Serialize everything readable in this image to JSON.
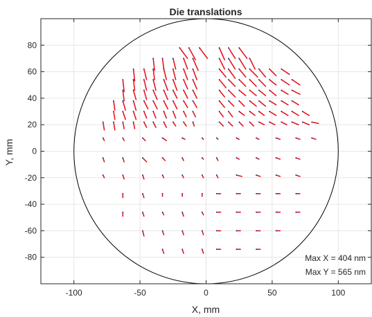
{
  "chart_data": {
    "type": "quiver",
    "title": "Die translations",
    "xlabel": "X, mm",
    "ylabel": "Y, mm",
    "xlim": [
      -125,
      125
    ],
    "ylim": [
      -100,
      100
    ],
    "xticks": [
      -100,
      -50,
      0,
      50,
      100
    ],
    "yticks": [
      -80,
      -60,
      -40,
      -20,
      0,
      20,
      40,
      60,
      80
    ],
    "grid": true,
    "wafer_circle": {
      "center": [
        0,
        0
      ],
      "radius": 100
    },
    "annotations": [
      "Max X = 404 nm",
      "Max Y = 565 nm"
    ],
    "colors": {
      "vector": "#e8141c",
      "tail": "#1b2a8c",
      "circle": "#000000",
      "grid": "#e6e6e6",
      "axis": "#262626"
    },
    "vectors": [
      {
        "x": -20,
        "y": 78,
        "u": 6,
        "v": -8
      },
      {
        "x": -13,
        "y": 78,
        "u": 5,
        "v": -9
      },
      {
        "x": -5,
        "y": 78,
        "u": 6,
        "v": -8
      },
      {
        "x": 10,
        "y": 78,
        "u": 4,
        "v": -9
      },
      {
        "x": 17,
        "y": 78,
        "u": 5,
        "v": -8
      },
      {
        "x": 25,
        "y": 78,
        "u": 6,
        "v": -8
      },
      {
        "x": -40,
        "y": 70,
        "u": 1,
        "v": -9
      },
      {
        "x": -33,
        "y": 70,
        "u": 1,
        "v": -8
      },
      {
        "x": -25,
        "y": 70,
        "u": 2,
        "v": -8
      },
      {
        "x": -17,
        "y": 70,
        "u": 3,
        "v": -8
      },
      {
        "x": -10,
        "y": 70,
        "u": 4,
        "v": -9
      },
      {
        "x": 10,
        "y": 70,
        "u": 4,
        "v": -8
      },
      {
        "x": 17,
        "y": 70,
        "u": 5,
        "v": -8
      },
      {
        "x": 25,
        "y": 70,
        "u": 5,
        "v": -8
      },
      {
        "x": 33,
        "y": 70,
        "u": 4,
        "v": -8
      },
      {
        "x": -55,
        "y": 62,
        "u": 1,
        "v": -9
      },
      {
        "x": -47,
        "y": 62,
        "u": 2,
        "v": -8
      },
      {
        "x": -40,
        "y": 62,
        "u": 1,
        "v": -8
      },
      {
        "x": -32,
        "y": 62,
        "u": 2,
        "v": -8
      },
      {
        "x": -25,
        "y": 62,
        "u": 2,
        "v": -8
      },
      {
        "x": -17,
        "y": 62,
        "u": 3,
        "v": -8
      },
      {
        "x": -10,
        "y": 62,
        "u": 3,
        "v": -8
      },
      {
        "x": 10,
        "y": 62,
        "u": 5,
        "v": -6
      },
      {
        "x": 17,
        "y": 62,
        "u": 5,
        "v": -7
      },
      {
        "x": 25,
        "y": 62,
        "u": 5,
        "v": -6
      },
      {
        "x": 33,
        "y": 62,
        "u": 6,
        "v": -6
      },
      {
        "x": 40,
        "y": 62,
        "u": 5,
        "v": -6
      },
      {
        "x": 48,
        "y": 62,
        "u": 5,
        "v": -5
      },
      {
        "x": 57,
        "y": 62,
        "u": 6,
        "v": -4
      },
      {
        "x": -63,
        "y": 54,
        "u": 1,
        "v": -9
      },
      {
        "x": -55,
        "y": 54,
        "u": 1,
        "v": -8
      },
      {
        "x": -47,
        "y": 54,
        "u": 2,
        "v": -8
      },
      {
        "x": -40,
        "y": 54,
        "u": 2,
        "v": -8
      },
      {
        "x": -32,
        "y": 54,
        "u": 3,
        "v": -8
      },
      {
        "x": -25,
        "y": 54,
        "u": 3,
        "v": -8
      },
      {
        "x": -17,
        "y": 54,
        "u": 3,
        "v": -7
      },
      {
        "x": -10,
        "y": 54,
        "u": 3,
        "v": -7
      },
      {
        "x": 10,
        "y": 54,
        "u": 5,
        "v": -6
      },
      {
        "x": 17,
        "y": 54,
        "u": 5,
        "v": -5
      },
      {
        "x": 25,
        "y": 54,
        "u": 5,
        "v": -5
      },
      {
        "x": 33,
        "y": 54,
        "u": 5,
        "v": -5
      },
      {
        "x": 40,
        "y": 54,
        "u": 5,
        "v": -5
      },
      {
        "x": 48,
        "y": 54,
        "u": 5,
        "v": -4
      },
      {
        "x": 57,
        "y": 54,
        "u": 6,
        "v": -4
      },
      {
        "x": 65,
        "y": 54,
        "u": 6,
        "v": -4
      },
      {
        "x": -63,
        "y": 46,
        "u": 1,
        "v": -8
      },
      {
        "x": -55,
        "y": 46,
        "u": 2,
        "v": -7
      },
      {
        "x": -47,
        "y": 46,
        "u": 2,
        "v": -7
      },
      {
        "x": -40,
        "y": 46,
        "u": 3,
        "v": -7
      },
      {
        "x": -32,
        "y": 46,
        "u": 3,
        "v": -7
      },
      {
        "x": -25,
        "y": 46,
        "u": 3,
        "v": -6
      },
      {
        "x": -17,
        "y": 46,
        "u": 3,
        "v": -6
      },
      {
        "x": -10,
        "y": 46,
        "u": 3,
        "v": -6
      },
      {
        "x": 10,
        "y": 46,
        "u": 4,
        "v": -5
      },
      {
        "x": 17,
        "y": 46,
        "u": 5,
        "v": -5
      },
      {
        "x": 25,
        "y": 46,
        "u": 5,
        "v": -4
      },
      {
        "x": 33,
        "y": 46,
        "u": 5,
        "v": -4
      },
      {
        "x": 40,
        "y": 46,
        "u": 5,
        "v": -4
      },
      {
        "x": 48,
        "y": 46,
        "u": 5,
        "v": -4
      },
      {
        "x": 57,
        "y": 46,
        "u": 5,
        "v": -3
      },
      {
        "x": 65,
        "y": 46,
        "u": 6,
        "v": -3
      },
      {
        "x": -70,
        "y": 38,
        "u": 1,
        "v": -7
      },
      {
        "x": -63,
        "y": 38,
        "u": 2,
        "v": -7
      },
      {
        "x": -55,
        "y": 38,
        "u": 2,
        "v": -7
      },
      {
        "x": -47,
        "y": 38,
        "u": 3,
        "v": -6
      },
      {
        "x": -40,
        "y": 38,
        "u": 3,
        "v": -6
      },
      {
        "x": -32,
        "y": 38,
        "u": 3,
        "v": -6
      },
      {
        "x": -25,
        "y": 38,
        "u": 3,
        "v": -6
      },
      {
        "x": -17,
        "y": 38,
        "u": 3,
        "v": -5
      },
      {
        "x": -10,
        "y": 38,
        "u": 3,
        "v": -5
      },
      {
        "x": 10,
        "y": 38,
        "u": 4,
        "v": -5
      },
      {
        "x": 17,
        "y": 38,
        "u": 4,
        "v": -4
      },
      {
        "x": 25,
        "y": 38,
        "u": 4,
        "v": -4
      },
      {
        "x": 33,
        "y": 38,
        "u": 5,
        "v": -4
      },
      {
        "x": 40,
        "y": 38,
        "u": 5,
        "v": -4
      },
      {
        "x": 48,
        "y": 38,
        "u": 5,
        "v": -3
      },
      {
        "x": 57,
        "y": 38,
        "u": 5,
        "v": -3
      },
      {
        "x": 65,
        "y": 38,
        "u": 5,
        "v": -3
      },
      {
        "x": -70,
        "y": 30,
        "u": 1,
        "v": -6
      },
      {
        "x": -63,
        "y": 30,
        "u": 2,
        "v": -6
      },
      {
        "x": -55,
        "y": 30,
        "u": 2,
        "v": -6
      },
      {
        "x": -47,
        "y": 30,
        "u": 2,
        "v": -5
      },
      {
        "x": -40,
        "y": 30,
        "u": 2,
        "v": -5
      },
      {
        "x": -32,
        "y": 30,
        "u": 2,
        "v": -5
      },
      {
        "x": -25,
        "y": 30,
        "u": 2,
        "v": -5
      },
      {
        "x": -17,
        "y": 30,
        "u": 2,
        "v": -4
      },
      {
        "x": -10,
        "y": 30,
        "u": 2,
        "v": -4
      },
      {
        "x": 10,
        "y": 30,
        "u": 3,
        "v": -4
      },
      {
        "x": 17,
        "y": 30,
        "u": 3,
        "v": -4
      },
      {
        "x": 25,
        "y": 30,
        "u": 4,
        "v": -3
      },
      {
        "x": 33,
        "y": 30,
        "u": 4,
        "v": -3
      },
      {
        "x": 40,
        "y": 30,
        "u": 4,
        "v": -3
      },
      {
        "x": 48,
        "y": 30,
        "u": 5,
        "v": -3
      },
      {
        "x": 57,
        "y": 30,
        "u": 5,
        "v": -3
      },
      {
        "x": 65,
        "y": 30,
        "u": 5,
        "v": -3
      },
      {
        "x": 73,
        "y": 30,
        "u": 5,
        "v": -3
      },
      {
        "x": -78,
        "y": 22,
        "u": 1,
        "v": -6
      },
      {
        "x": -70,
        "y": 22,
        "u": 1,
        "v": -6
      },
      {
        "x": -63,
        "y": 22,
        "u": 1,
        "v": -5
      },
      {
        "x": -55,
        "y": 22,
        "u": 1,
        "v": -5
      },
      {
        "x": -47,
        "y": 22,
        "u": 2,
        "v": -4
      },
      {
        "x": -40,
        "y": 22,
        "u": 2,
        "v": -4
      },
      {
        "x": -32,
        "y": 22,
        "u": 2,
        "v": -4
      },
      {
        "x": -25,
        "y": 22,
        "u": 2,
        "v": -3
      },
      {
        "x": -17,
        "y": 22,
        "u": 2,
        "v": -3
      },
      {
        "x": -10,
        "y": 22,
        "u": 1,
        "v": -3
      },
      {
        "x": 10,
        "y": 22,
        "u": 3,
        "v": -3
      },
      {
        "x": 17,
        "y": 22,
        "u": 3,
        "v": -3
      },
      {
        "x": 25,
        "y": 22,
        "u": 3,
        "v": -3
      },
      {
        "x": 33,
        "y": 22,
        "u": 3,
        "v": -3
      },
      {
        "x": 40,
        "y": 22,
        "u": 4,
        "v": -2
      },
      {
        "x": 48,
        "y": 22,
        "u": 4,
        "v": -2
      },
      {
        "x": 57,
        "y": 22,
        "u": 4,
        "v": -2
      },
      {
        "x": 65,
        "y": 22,
        "u": 5,
        "v": -2
      },
      {
        "x": 73,
        "y": 22,
        "u": 5,
        "v": -2
      },
      {
        "x": 80,
        "y": 22,
        "u": 5,
        "v": -1
      },
      {
        "x": -78,
        "y": 10,
        "u": 1,
        "v": -2
      },
      {
        "x": -63,
        "y": 10,
        "u": 1,
        "v": -2
      },
      {
        "x": -48,
        "y": 10,
        "u": 2,
        "v": -2
      },
      {
        "x": -33,
        "y": 10,
        "u": 3,
        "v": -2
      },
      {
        "x": -18,
        "y": 10,
        "u": 2,
        "v": -1
      },
      {
        "x": -3,
        "y": 10,
        "u": 1,
        "v": -1
      },
      {
        "x": 8,
        "y": 10,
        "u": 1,
        "v": -1
      },
      {
        "x": 23,
        "y": 10,
        "u": 2,
        "v": -1
      },
      {
        "x": 38,
        "y": 10,
        "u": 2,
        "v": -1
      },
      {
        "x": 53,
        "y": 10,
        "u": 3,
        "v": -1
      },
      {
        "x": 68,
        "y": 10,
        "u": 3,
        "v": -1
      },
      {
        "x": 80,
        "y": 10,
        "u": 3,
        "v": -1
      },
      {
        "x": -78,
        "y": -5,
        "u": 1,
        "v": -3
      },
      {
        "x": -63,
        "y": -5,
        "u": 1,
        "v": -3
      },
      {
        "x": -48,
        "y": -5,
        "u": 3,
        "v": -3
      },
      {
        "x": -33,
        "y": -5,
        "u": 2,
        "v": -2
      },
      {
        "x": -18,
        "y": -5,
        "u": 1,
        "v": -2
      },
      {
        "x": -3,
        "y": -5,
        "u": 1,
        "v": -1
      },
      {
        "x": 8,
        "y": -5,
        "u": 1,
        "v": -2
      },
      {
        "x": 23,
        "y": -5,
        "u": 2,
        "v": -1
      },
      {
        "x": 38,
        "y": -5,
        "u": 2,
        "v": -1
      },
      {
        "x": 53,
        "y": -5,
        "u": 3,
        "v": -1
      },
      {
        "x": 68,
        "y": -5,
        "u": 3,
        "v": -1
      },
      {
        "x": -78,
        "y": -18,
        "u": 1,
        "v": -2
      },
      {
        "x": -63,
        "y": -18,
        "u": 1,
        "v": -3
      },
      {
        "x": -48,
        "y": -18,
        "u": 1,
        "v": -3
      },
      {
        "x": -33,
        "y": -18,
        "u": 1,
        "v": -2
      },
      {
        "x": -18,
        "y": -18,
        "u": 1,
        "v": -2
      },
      {
        "x": -3,
        "y": -18,
        "u": 1,
        "v": -2
      },
      {
        "x": 8,
        "y": -18,
        "u": 1,
        "v": -2
      },
      {
        "x": 23,
        "y": -18,
        "u": 4,
        "v": -1
      },
      {
        "x": 38,
        "y": -18,
        "u": 3,
        "v": -1
      },
      {
        "x": 53,
        "y": -18,
        "u": 3,
        "v": -1
      },
      {
        "x": 68,
        "y": -18,
        "u": 3,
        "v": -1
      },
      {
        "x": -63,
        "y": -32,
        "u": 0,
        "v": -3
      },
      {
        "x": -48,
        "y": -32,
        "u": 1,
        "v": -3
      },
      {
        "x": -33,
        "y": -32,
        "u": 0,
        "v": -2
      },
      {
        "x": -18,
        "y": -32,
        "u": 0,
        "v": -2
      },
      {
        "x": -3,
        "y": -32,
        "u": 0,
        "v": -2
      },
      {
        "x": 8,
        "y": -32,
        "u": 3,
        "v": 0
      },
      {
        "x": 23,
        "y": -32,
        "u": 3,
        "v": 0
      },
      {
        "x": 38,
        "y": -32,
        "u": 3,
        "v": 0
      },
      {
        "x": 53,
        "y": -32,
        "u": 3,
        "v": 0
      },
      {
        "x": 68,
        "y": -32,
        "u": 3,
        "v": 0
      },
      {
        "x": -63,
        "y": -46,
        "u": 0,
        "v": -3
      },
      {
        "x": -48,
        "y": -46,
        "u": 1,
        "v": -3
      },
      {
        "x": -33,
        "y": -46,
        "u": 1,
        "v": -2
      },
      {
        "x": -18,
        "y": -46,
        "u": 1,
        "v": -3
      },
      {
        "x": -3,
        "y": -46,
        "u": 1,
        "v": -2
      },
      {
        "x": 8,
        "y": -46,
        "u": 3,
        "v": 0
      },
      {
        "x": 23,
        "y": -46,
        "u": 3,
        "v": 0
      },
      {
        "x": 38,
        "y": -46,
        "u": 3,
        "v": 0
      },
      {
        "x": 53,
        "y": -46,
        "u": 3,
        "v": 0
      },
      {
        "x": 68,
        "y": -46,
        "u": 3,
        "v": 0
      },
      {
        "x": -48,
        "y": -60,
        "u": 1,
        "v": -4
      },
      {
        "x": -33,
        "y": -60,
        "u": 1,
        "v": -3
      },
      {
        "x": -18,
        "y": -60,
        "u": 1,
        "v": -3
      },
      {
        "x": -3,
        "y": -60,
        "u": 1,
        "v": -3
      },
      {
        "x": 8,
        "y": -60,
        "u": 3,
        "v": 0
      },
      {
        "x": 23,
        "y": -60,
        "u": 3,
        "v": 0
      },
      {
        "x": 38,
        "y": -60,
        "u": 3,
        "v": 0
      },
      {
        "x": 53,
        "y": -60,
        "u": 3,
        "v": 0
      },
      {
        "x": -33,
        "y": -74,
        "u": 1,
        "v": -3
      },
      {
        "x": -18,
        "y": -74,
        "u": 1,
        "v": -3
      },
      {
        "x": -3,
        "y": -74,
        "u": 1,
        "v": -3
      },
      {
        "x": 8,
        "y": -74,
        "u": 3,
        "v": 0
      },
      {
        "x": 23,
        "y": -74,
        "u": 3,
        "v": 0
      },
      {
        "x": 38,
        "y": -74,
        "u": 3,
        "v": 0
      }
    ]
  }
}
